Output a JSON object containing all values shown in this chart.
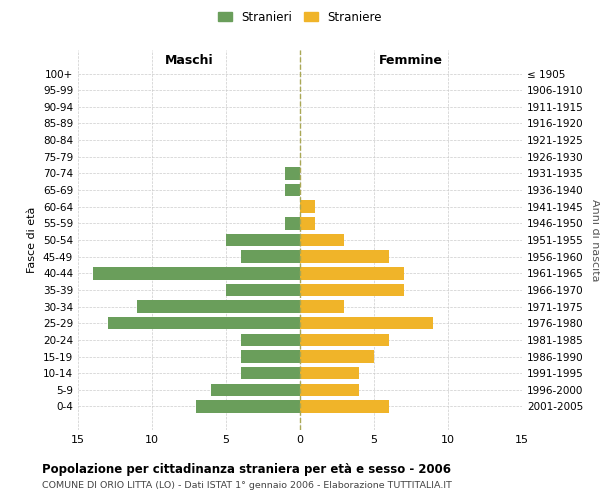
{
  "age_groups": [
    "100+",
    "95-99",
    "90-94",
    "85-89",
    "80-84",
    "75-79",
    "70-74",
    "65-69",
    "60-64",
    "55-59",
    "50-54",
    "45-49",
    "40-44",
    "35-39",
    "30-34",
    "25-29",
    "20-24",
    "15-19",
    "10-14",
    "5-9",
    "0-4"
  ],
  "birth_years": [
    "≤ 1905",
    "1906-1910",
    "1911-1915",
    "1916-1920",
    "1921-1925",
    "1926-1930",
    "1931-1935",
    "1936-1940",
    "1941-1945",
    "1946-1950",
    "1951-1955",
    "1956-1960",
    "1961-1965",
    "1966-1970",
    "1971-1975",
    "1976-1980",
    "1981-1985",
    "1986-1990",
    "1991-1995",
    "1996-2000",
    "2001-2005"
  ],
  "males": [
    0,
    0,
    0,
    0,
    0,
    0,
    1,
    1,
    0,
    1,
    5,
    4,
    14,
    5,
    11,
    13,
    4,
    4,
    4,
    6,
    7
  ],
  "females": [
    0,
    0,
    0,
    0,
    0,
    0,
    0,
    0,
    1,
    1,
    3,
    6,
    7,
    7,
    3,
    9,
    6,
    5,
    4,
    4,
    6
  ],
  "male_color": "#6a9e5b",
  "female_color": "#f0b429",
  "male_label": "Stranieri",
  "female_label": "Straniere",
  "xlabel_left": "Maschi",
  "xlabel_right": "Femmine",
  "ylabel_left": "Fasce di età",
  "ylabel_right": "Anni di nascita",
  "xlim": 15,
  "title": "Popolazione per cittadinanza straniera per età e sesso - 2006",
  "subtitle": "COMUNE DI ORIO LITTA (LO) - Dati ISTAT 1° gennaio 2006 - Elaborazione TUTTITALIA.IT",
  "background_color": "#ffffff",
  "grid_color": "#cccccc",
  "dashed_line_color": "#aaa855"
}
